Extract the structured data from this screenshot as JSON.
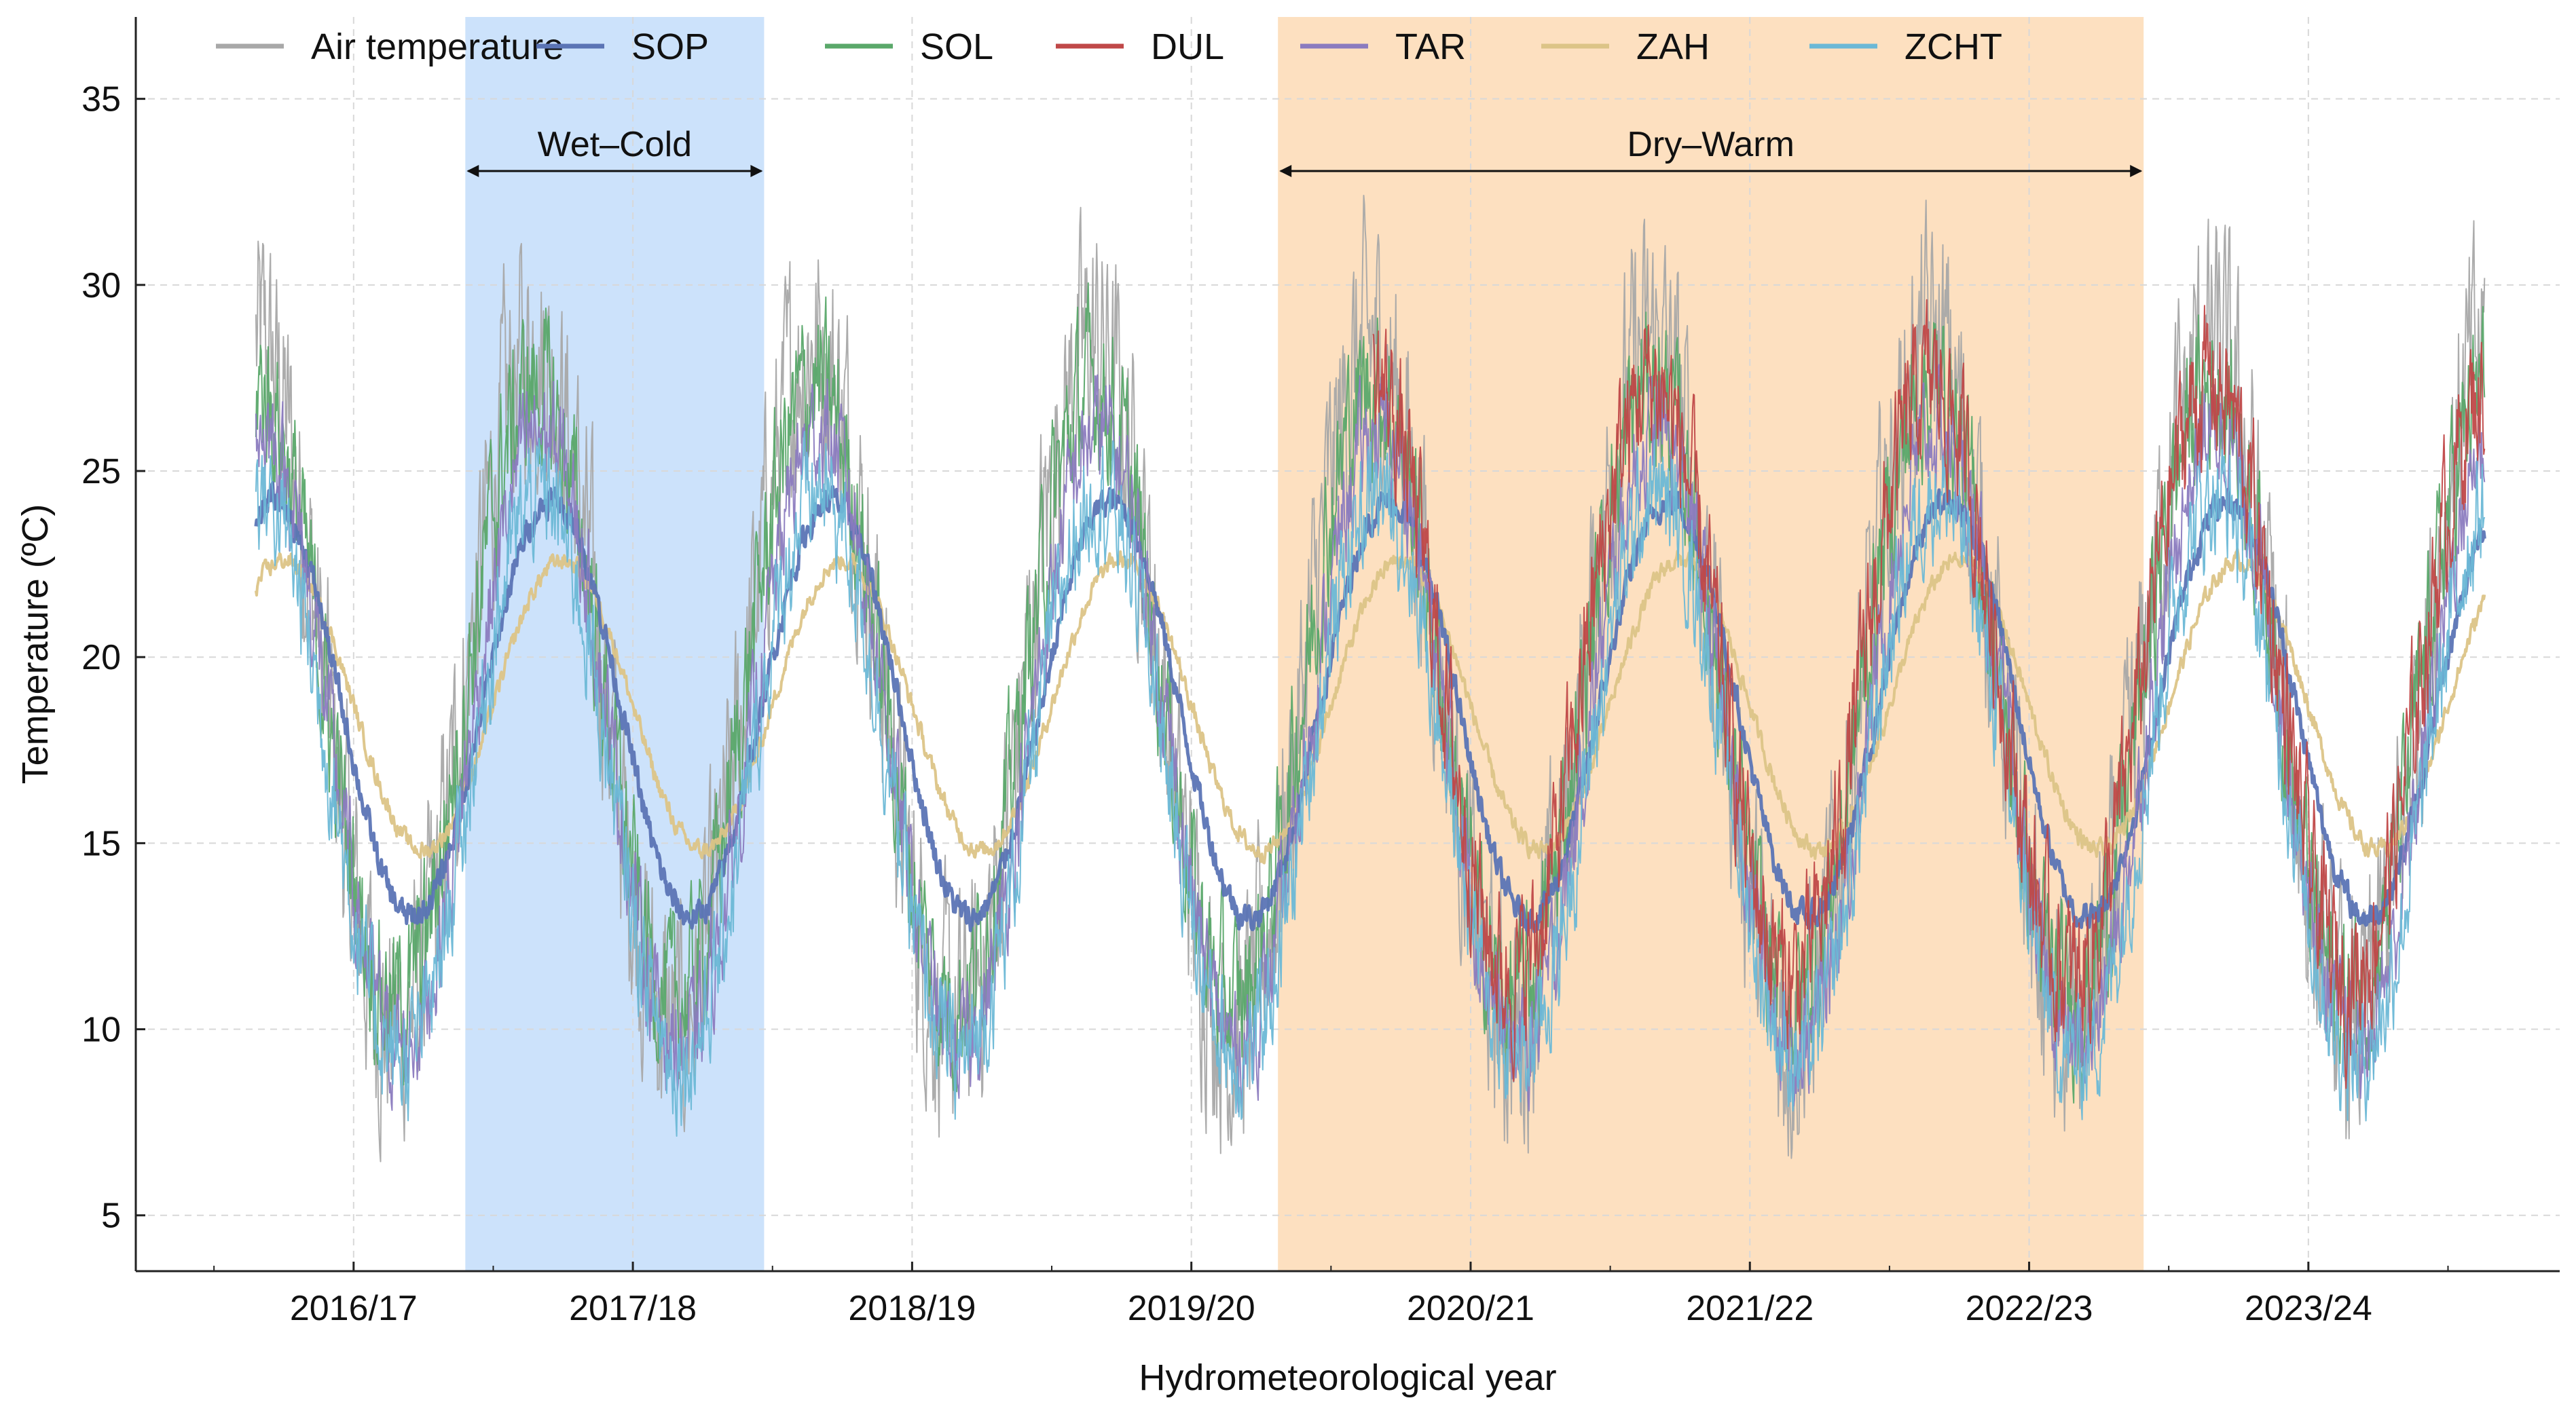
{
  "chart_data": {
    "type": "line",
    "title": "",
    "xlabel": "Hydrometeorological year",
    "ylabel": "Temperature (ºC)",
    "ylim": [
      3.5,
      37.2
    ],
    "yticks": [
      5,
      10,
      15,
      20,
      25,
      30,
      35
    ],
    "x_unit": "years since 2016-09-01",
    "xlim": [
      -0.43,
      8.25
    ],
    "categories": [
      "2016/17",
      "2017/18",
      "2018/19",
      "2019/20",
      "2020/21",
      "2021/22",
      "2022/23",
      "2023/24"
    ],
    "category_positions": [
      0.35,
      1.35,
      2.35,
      3.35,
      4.35,
      5.35,
      6.35,
      7.35
    ],
    "grid": true,
    "legend_position": "top",
    "periods": [
      {
        "label": "Wet–Cold",
        "start": 0.75,
        "end": 1.82,
        "color": "#cce2fb"
      },
      {
        "label": "Dry–Warm",
        "start": 3.66,
        "end": 6.76,
        "color": "#fde0c0"
      }
    ],
    "series": [
      {
        "name": "Air temperature",
        "color": "#a8a8a8",
        "width": 2,
        "profile": {
          "mean": 19.2,
          "amp": 9.2,
          "noise": 2.6,
          "trend": 0.0,
          "phase": 0.0,
          "start": 0.0,
          "end": 7.98
        }
      },
      {
        "name": "SOP",
        "color": "#5b74b5",
        "width": 5,
        "profile": {
          "mean": 18.6,
          "amp": 5.6,
          "noise": 0.3,
          "trend": 0.0,
          "phase": 0.06,
          "start": 0.0,
          "end": 7.98
        }
      },
      {
        "name": "SOL",
        "color": "#5aa86a",
        "width": 3,
        "profile": {
          "mean": 19.0,
          "amp": 8.3,
          "noise": 1.7,
          "trend": 0.0,
          "phase": 0.0,
          "start": 0.0,
          "end": 7.98
        }
      },
      {
        "name": "DUL",
        "color": "#c04848",
        "width": 3,
        "profile": {
          "mean": 19.4,
          "amp": 8.0,
          "noise": 1.6,
          "trend": 0.0,
          "phase": 0.0,
          "start": 4.0,
          "end": 7.98
        }
      },
      {
        "name": "TAR",
        "color": "#8b7bbf",
        "width": 4,
        "profile": {
          "mean": 17.8,
          "amp": 8.3,
          "noise": 1.2,
          "trend": 0.0,
          "phase": 0.02,
          "start": 0.0,
          "end": 7.98
        }
      },
      {
        "name": "ZAH",
        "color": "#dcc487",
        "width": 4,
        "profile": {
          "mean": 18.7,
          "amp": 3.9,
          "noise": 0.2,
          "trend": 0.0,
          "phase": 0.1,
          "start": 0.0,
          "end": 7.98
        }
      },
      {
        "name": "ZCHT",
        "color": "#6bb8d6",
        "width": 4,
        "profile": {
          "mean": 16.8,
          "amp": 7.6,
          "noise": 1.3,
          "trend": 0.0,
          "phase": 0.02,
          "start": 0.0,
          "end": 7.98
        }
      }
    ]
  }
}
